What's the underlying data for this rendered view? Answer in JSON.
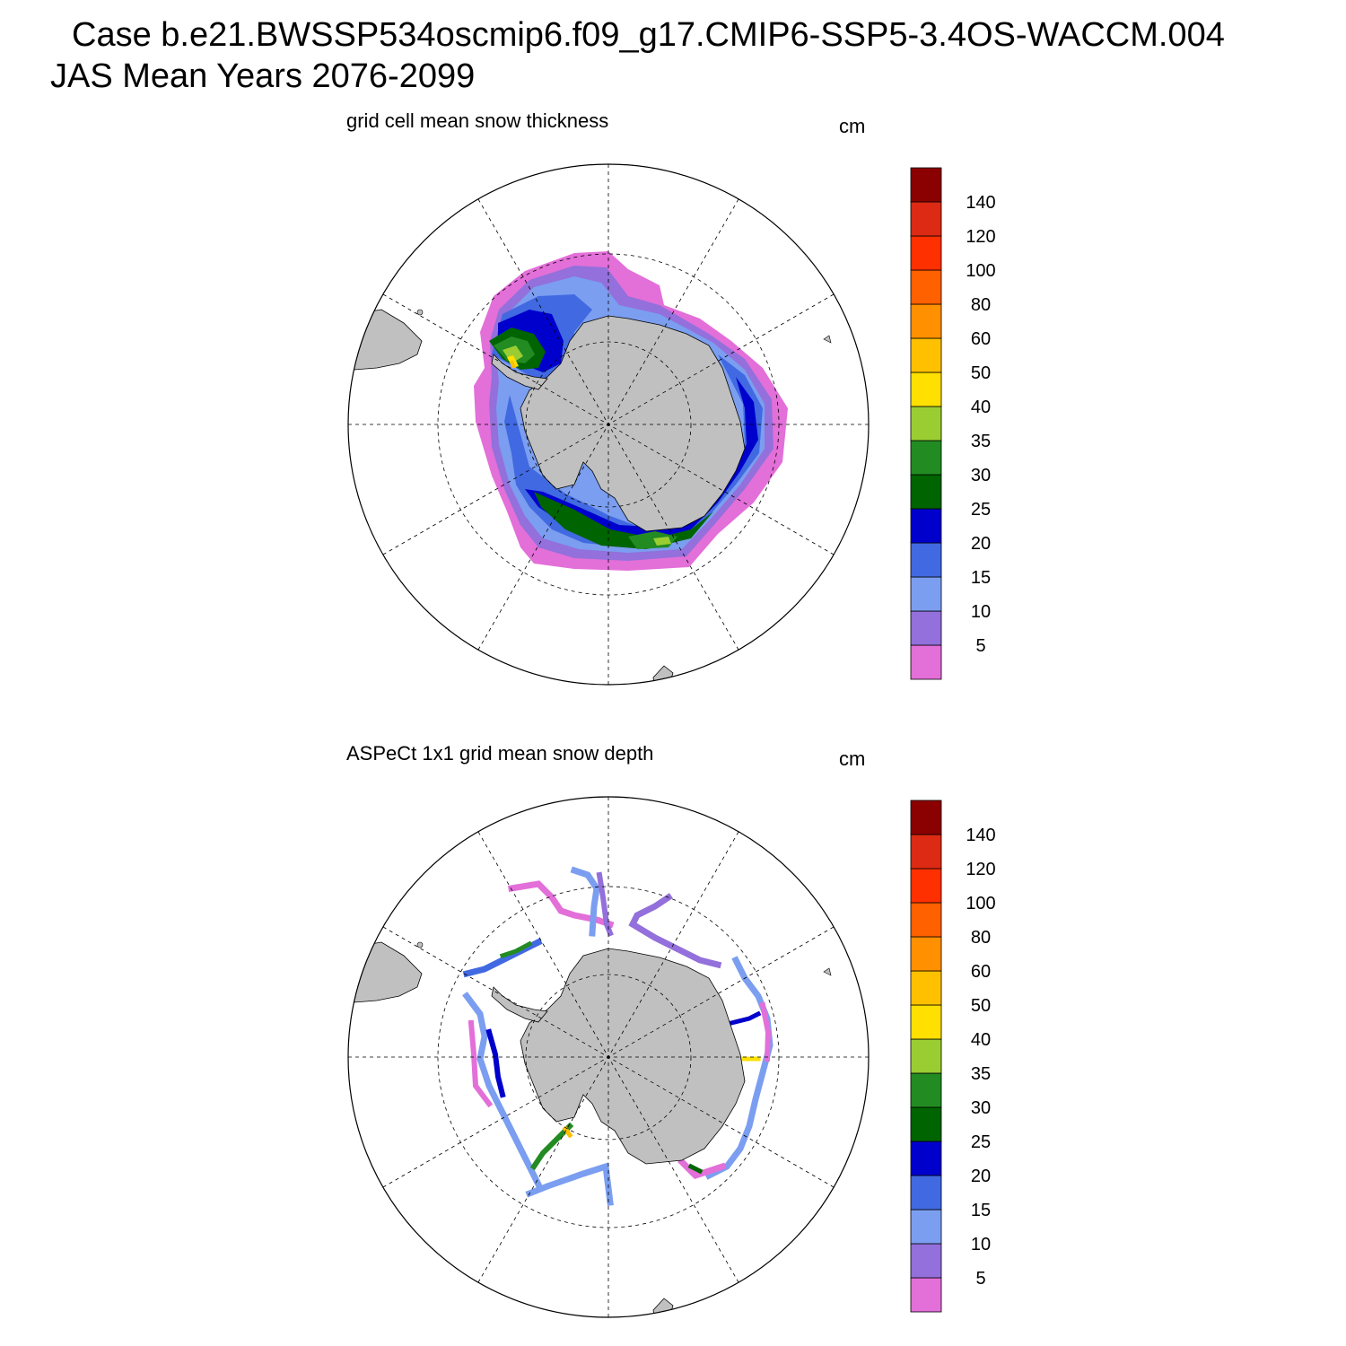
{
  "header": {
    "line1": "Case b.e21.BWSSP534oscmip6.f09_g17.CMIP6-SSP5-3.4OS-WACCM.004",
    "line2": "JAS Mean   Years 2076-2099"
  },
  "colorbar": {
    "levels": [
      "5",
      "10",
      "15",
      "20",
      "25",
      "30",
      "35",
      "40",
      "50",
      "60",
      "80",
      "100",
      "120",
      "140"
    ],
    "colors": [
      "#e36fd9",
      "#9370db",
      "#7b9ef0",
      "#4169e1",
      "#0000cd",
      "#006400",
      "#228b22",
      "#9acd32",
      "#ffe000",
      "#ffc000",
      "#ff9000",
      "#ff6000",
      "#ff3000",
      "#dc2a14",
      "#8b0000"
    ]
  },
  "land_color": "#c0c0c0",
  "panels": [
    {
      "title": "grid cell mean snow thickness",
      "unit": "cm"
    },
    {
      "title": "ASPeCt 1x1 grid mean snow depth",
      "unit": "cm"
    }
  ]
}
